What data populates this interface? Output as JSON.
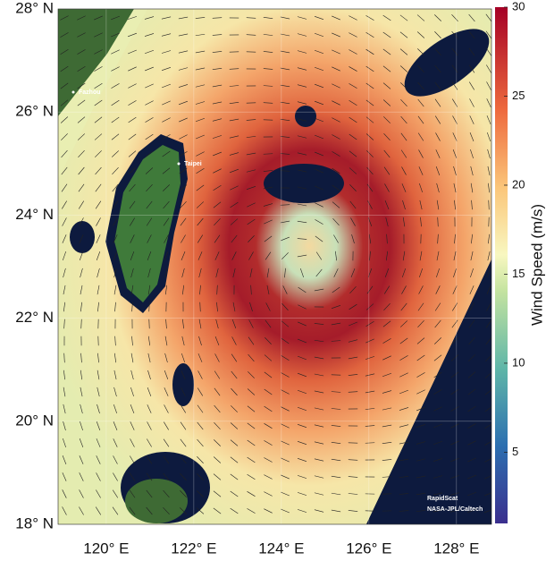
{
  "map": {
    "latlim": [
      18,
      28
    ],
    "lonlim": [
      118.9,
      128.8
    ],
    "lat_ticks": [
      {
        "value": 18,
        "label": "18° N"
      },
      {
        "value": 20,
        "label": "20° N"
      },
      {
        "value": 22,
        "label": "22° N"
      },
      {
        "value": 24,
        "label": "24° N"
      },
      {
        "value": 26,
        "label": "26° N"
      },
      {
        "value": 28,
        "label": "28° N"
      }
    ],
    "lon_ticks": [
      {
        "value": 120,
        "label": "120° E"
      },
      {
        "value": 122,
        "label": "122° E"
      },
      {
        "value": 124,
        "label": "124° E"
      },
      {
        "value": 126,
        "label": "126° E"
      },
      {
        "value": 128,
        "label": "128° E"
      }
    ],
    "cities": [
      "Fazhou",
      "Taipei"
    ],
    "credits": [
      "RapidScat",
      "NASA-JPL/Caltech"
    ]
  },
  "colorbar": {
    "label": "Wind Speed (m/s)",
    "lim": [
      1,
      30
    ],
    "ticks": [
      5,
      10,
      15,
      20,
      25,
      30
    ]
  }
}
